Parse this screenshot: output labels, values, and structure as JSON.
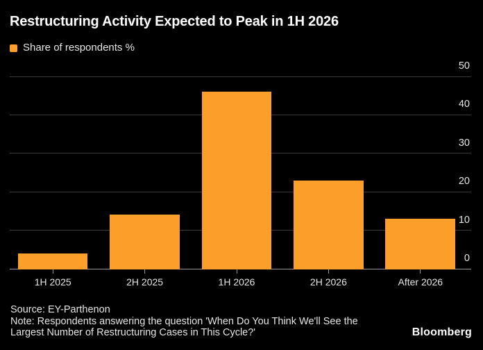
{
  "header": {
    "title": "Restructuring Activity Expected to Peak in 1H 2026"
  },
  "legend": {
    "label": "Share of respondents %"
  },
  "chart_data": {
    "type": "bar",
    "title": "Restructuring Activity Expected to Peak in 1H 2026",
    "series_name": "Share of respondents %",
    "categories": [
      "1H 2025",
      "2H 2025",
      "1H 2026",
      "2H 2026",
      "After 2026"
    ],
    "values": [
      4,
      14,
      46,
      23,
      13
    ],
    "xlabel": "",
    "ylabel": "",
    "ylim": [
      0,
      50
    ],
    "yticks": [
      0,
      10,
      20,
      30,
      40,
      50
    ],
    "ytick_side": "right",
    "grid": "horizontal",
    "legend_position": "top-left"
  },
  "footer": {
    "source": "Source: EY-Parthenon",
    "note_lines": [
      "Note: Respondents answering the question 'When Do You Think We'll See the",
      "Largest Number of Restructuring Cases in This Cycle?'"
    ],
    "brand": "Bloomberg"
  },
  "colors": {
    "background": "#000000",
    "bar": "#FC9E2A",
    "grid": "#3A3A3A",
    "axis": "#999999",
    "text": "#E6E6E6",
    "title": "#FFFFFF"
  }
}
